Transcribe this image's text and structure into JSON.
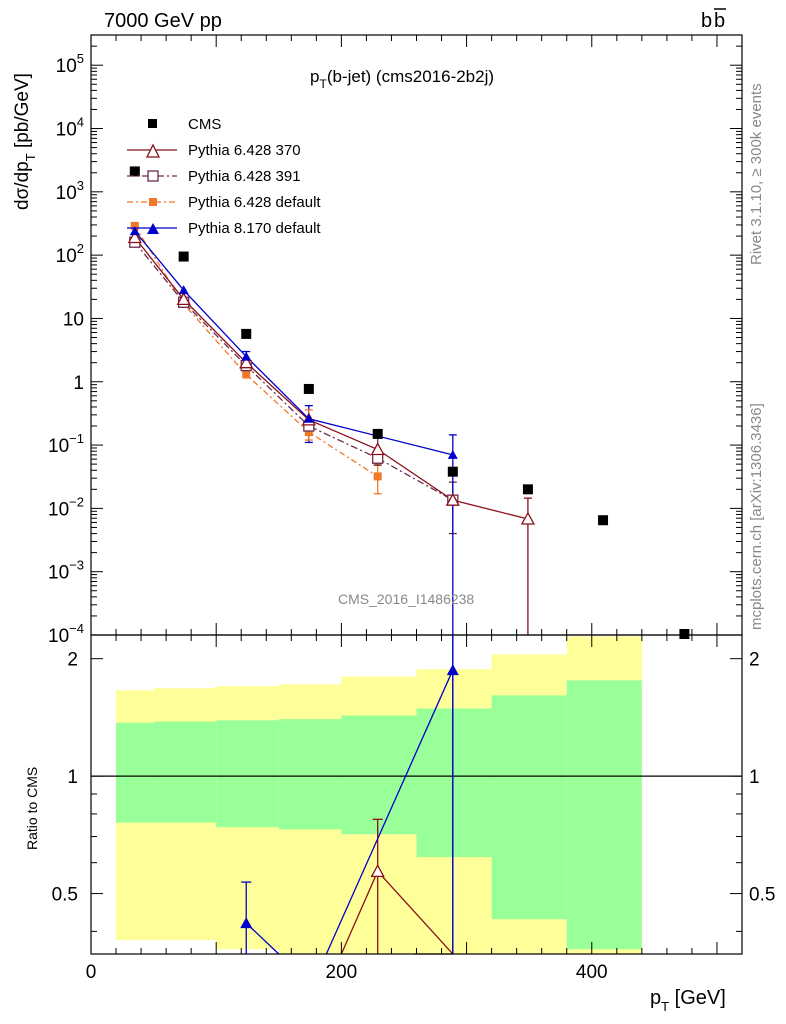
{
  "header": {
    "left": "7000 GeV pp",
    "right_base": "b",
    "right_bar": "b"
  },
  "title": {
    "p": "p",
    "sub": "T",
    "rest": "(b-jet) (cms2016-2b2j)"
  },
  "side_label_top": "Rivet 3.1.10, ≥ 300k events",
  "side_label_bottom": "mcplots.cern.ch [arXiv:1306.3436]",
  "watermark": "CMS_2016_I1486238",
  "ylabel_main": {
    "pre": "dσ/dp",
    "sub": "T",
    "post": " [pb/GeV]"
  },
  "ylabel_ratio": "Ratio to CMS",
  "xlabel": {
    "pre": "p",
    "sub": "T",
    "post": " [GeV]"
  },
  "main_ytick_labels": [
    {
      "base": "10",
      "exp": "5",
      "dec": 5
    },
    {
      "base": "10",
      "exp": "4",
      "dec": 4
    },
    {
      "base": "10",
      "exp": "3",
      "dec": 3
    },
    {
      "base": "10",
      "exp": "2",
      "dec": 2
    },
    {
      "base": "10",
      "exp": "",
      "dec": 1
    },
    {
      "base": "1",
      "exp": "",
      "dec": 0
    },
    {
      "base": "10",
      "exp": "−1",
      "dec": -1
    },
    {
      "base": "10",
      "exp": "−2",
      "dec": -2
    },
    {
      "base": "10",
      "exp": "−3",
      "dec": -3
    },
    {
      "base": "10",
      "exp": "−4",
      "dec": -4
    }
  ],
  "ratio_ytick_labels": [
    "2",
    "1",
    "0.5"
  ],
  "xtick_labels": [
    "0",
    "200",
    "400"
  ],
  "colors": {
    "cms": "#000000",
    "p370": "#8b0f1a",
    "p391": "#6b2c4c",
    "p6def": "#f07828",
    "p8def": "#0000cc",
    "band_green": "#99ff99",
    "band_yellow": "#ffff99"
  },
  "chart_data": [
    {
      "type": "scatter",
      "title": "",
      "xlabel": "p_T [GeV]",
      "ylabel": "dσ/dp_T [pb/GeV]",
      "xlim": [
        0,
        520
      ],
      "ylim": [
        0.0001,
        300000
      ],
      "log_y": true,
      "legend_position": "top-left",
      "series": [
        {
          "name": "CMS",
          "x": [
            35,
            74,
            124,
            174,
            229,
            289,
            349,
            409,
            474
          ],
          "y": [
            2100,
            95,
            5.7,
            0.77,
            0.15,
            0.038,
            0.02,
            0.0065,
            8.8e-05
          ]
        },
        {
          "name": "Pythia 6.428 370",
          "x": [
            35,
            74,
            124,
            174,
            229,
            289,
            349
          ],
          "y": [
            190,
            20,
            2.0,
            0.25,
            0.085,
            0.0135,
            0.0068
          ]
        },
        {
          "name": "Pythia 6.428 391",
          "x": [
            35,
            74,
            124,
            174,
            229,
            289
          ],
          "y": [
            160,
            18,
            1.8,
            0.2,
            0.062,
            0.0135
          ]
        },
        {
          "name": "Pythia 6.428 default",
          "x": [
            35,
            74,
            124,
            174,
            229
          ],
          "y": [
            290,
            17,
            1.3,
            0.16,
            0.032
          ]
        },
        {
          "name": "Pythia 8.170 default",
          "x": [
            35,
            74,
            124,
            174,
            289
          ],
          "y": [
            240,
            28,
            2.5,
            0.26,
            0.07
          ]
        }
      ]
    },
    {
      "type": "line",
      "title": "",
      "xlabel": "p_T [GeV]",
      "ylabel": "Ratio to CMS",
      "xlim": [
        0,
        520
      ],
      "ylim": [
        0.35,
        2.3
      ],
      "bins": [
        [
          20,
          50
        ],
        [
          50,
          100
        ],
        [
          100,
          150
        ],
        [
          150,
          200
        ],
        [
          200,
          260
        ],
        [
          260,
          320
        ],
        [
          320,
          380
        ],
        [
          380,
          440
        ]
      ],
      "green_band": [
        [
          0.76,
          1.37
        ],
        [
          0.76,
          1.38
        ],
        [
          0.74,
          1.39
        ],
        [
          0.73,
          1.4
        ],
        [
          0.71,
          1.43
        ],
        [
          0.62,
          1.49
        ],
        [
          0.43,
          1.61
        ],
        [
          0.36,
          1.76
        ]
      ],
      "yellow_band": [
        [
          0.38,
          1.66
        ],
        [
          0.38,
          1.68
        ],
        [
          0.36,
          1.7
        ],
        [
          0.35,
          1.72
        ],
        [
          0.35,
          1.8
        ],
        [
          0.34,
          1.88
        ],
        [
          0.31,
          2.05
        ],
        [
          0.3,
          2.28
        ]
      ],
      "series": [
        {
          "name": "Pythia 6.428 370",
          "x": [
            229,
            289
          ],
          "y": [
            0.57,
            0.35
          ]
        },
        {
          "name": "Pythia 8.170 default",
          "x": [
            124,
            174,
            289
          ],
          "y": [
            0.42,
            0.33,
            1.87
          ]
        }
      ]
    }
  ]
}
